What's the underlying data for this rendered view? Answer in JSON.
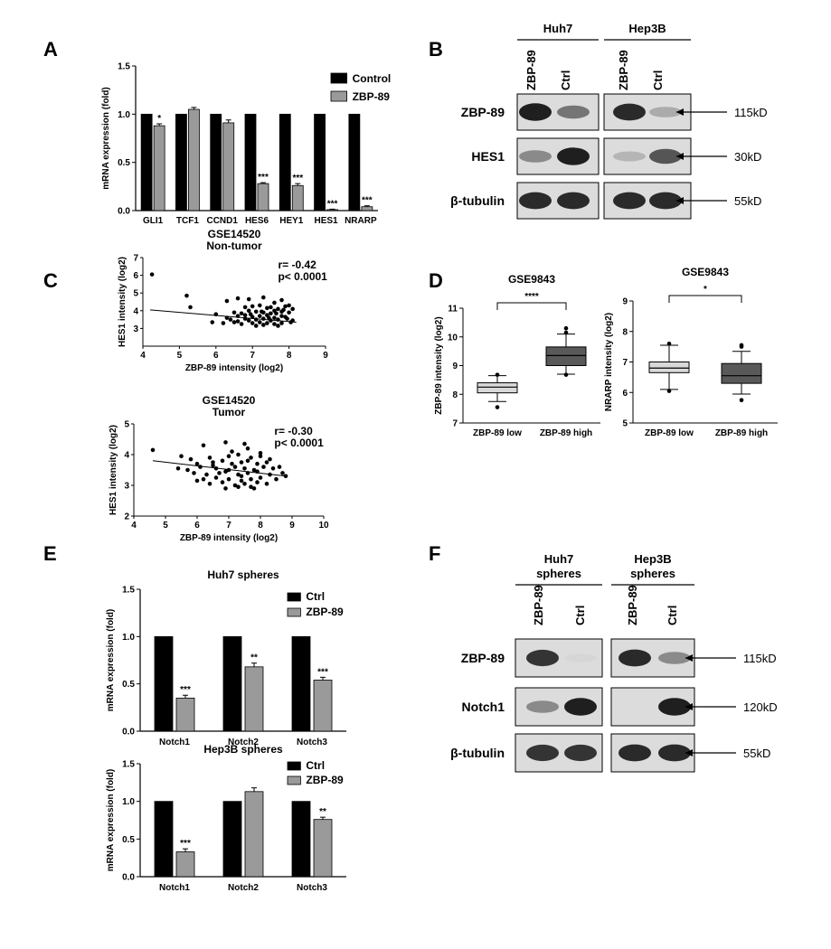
{
  "panels": {
    "A": {
      "letter": "A",
      "chart_data": {
        "type": "bar",
        "categories": [
          "GLI1",
          "TCF1",
          "CCND1",
          "HES6",
          "HEY1",
          "HES1",
          "NRARP"
        ],
        "series": [
          {
            "name": "Control",
            "values": [
              1.0,
              1.0,
              1.0,
              1.0,
              1.0,
              1.0,
              1.0
            ],
            "errors": [
              0,
              0,
              0,
              0,
              0,
              0,
              0
            ],
            "color": "#000000"
          },
          {
            "name": "ZBP-89",
            "values": [
              0.88,
              1.05,
              0.91,
              0.28,
              0.26,
              0.01,
              0.04
            ],
            "errors": [
              0.02,
              0.02,
              0.03,
              0.01,
              0.02,
              0.005,
              0.01
            ],
            "color": "#9a9a9a"
          }
        ],
        "significance": [
          "*",
          "",
          "",
          "***",
          "***",
          "***",
          "***"
        ],
        "ylabel": "mRNA expression (fold)",
        "yticks": [
          "0.0",
          "0.5",
          "1.0",
          "1.5"
        ],
        "ylim": [
          0,
          1.5
        ],
        "legend": "top-right"
      }
    },
    "B": {
      "letter": "B",
      "groups": [
        "Huh7",
        "Hep3B"
      ],
      "lanes": [
        "ZBP-89",
        "Ctrl",
        "ZBP-89",
        "Ctrl"
      ],
      "rows": [
        {
          "label": "ZBP-89",
          "size": "115kD",
          "bands": [
            0.95,
            0.55,
            0.9,
            0.3
          ]
        },
        {
          "label": "HES1",
          "size": "30kD",
          "bands": [
            0.45,
            0.95,
            0.25,
            0.7
          ]
        },
        {
          "label": "β-tubulin",
          "size": "55kD",
          "bands": [
            0.9,
            0.9,
            0.9,
            0.9
          ]
        }
      ]
    },
    "C": {
      "letter": "C",
      "charts": [
        {
          "chart_data": {
            "type": "scatter",
            "title": "GSE14520",
            "subtitle": "Non-tumor",
            "xlabel": "ZBP-89 intensity (log2)",
            "ylabel": "HES1 intensity (log2)",
            "xlim": [
              4,
              9
            ],
            "ylim": [
              2,
              7
            ],
            "xticks": [
              "4",
              "5",
              "6",
              "7",
              "8",
              "9"
            ],
            "yticks": [
              "3",
              "4",
              "5",
              "6",
              "7"
            ],
            "stats": [
              "r= -0.42",
              "p< 0.0001"
            ],
            "fit": {
              "x": [
                4.2,
                8.2
              ],
              "y": [
                4.05,
                3.35
              ]
            },
            "points": {
              "x": [
                4.25,
                5.2,
                5.3,
                6.3,
                6.6,
                6.9,
                7.3,
                7.6,
                7.8,
                6.8,
                7.0,
                7.2,
                7.4,
                7.5,
                7.7,
                7.9,
                8.0,
                8.1,
                6.5,
                6.7,
                6.9,
                7.1,
                7.3,
                7.5,
                7.6,
                7.8,
                8.0,
                6.6,
                6.8,
                7.0,
                7.2,
                7.4,
                7.6,
                7.8,
                7.9,
                6.4,
                6.9,
                7.1,
                7.3,
                7.5,
                7.7,
                7.95,
                6.2,
                6.5,
                6.7,
                7.0,
                7.2,
                7.4,
                7.6,
                7.8,
                8.05,
                6.0,
                6.3,
                6.6,
                7.1,
                7.3,
                7.7,
                8.1,
                5.9,
                6.8,
                7.45,
                7.65,
                7.25,
                6.95,
                7.85
              ],
              "y": [
                6.05,
                4.85,
                4.2,
                4.55,
                4.7,
                4.65,
                4.75,
                4.45,
                4.6,
                4.2,
                4.25,
                4.3,
                4.15,
                4.2,
                4.1,
                4.25,
                4.3,
                4.1,
                3.9,
                3.85,
                4.0,
                3.95,
                3.9,
                3.85,
                4.0,
                3.95,
                3.9,
                3.7,
                3.75,
                3.65,
                3.7,
                3.75,
                3.6,
                3.7,
                3.65,
                3.5,
                3.45,
                3.5,
                3.55,
                3.45,
                3.5,
                3.55,
                3.3,
                3.35,
                3.25,
                3.3,
                3.35,
                3.3,
                3.25,
                3.3,
                3.35,
                3.8,
                3.6,
                3.4,
                3.15,
                3.2,
                3.15,
                3.45,
                3.35,
                3.55,
                3.6,
                3.85,
                3.95,
                3.8,
                4.05
              ]
            }
          }
        },
        {
          "chart_data": {
            "type": "scatter",
            "title": "GSE14520",
            "subtitle": "Tumor",
            "xlabel": "ZBP-89 intensity (log2)",
            "ylabel": "HES1 intensity (log2)",
            "xlim": [
              4,
              10
            ],
            "ylim": [
              2,
              5
            ],
            "xticks": [
              "4",
              "5",
              "6",
              "7",
              "8",
              "9",
              "10"
            ],
            "yticks": [
              "2",
              "3",
              "4",
              "5"
            ],
            "stats": [
              "r= -0.30",
              "p< 0.0001"
            ],
            "fit": {
              "x": [
                4.6,
                8.8
              ],
              "y": [
                3.8,
                3.3
              ]
            },
            "points": {
              "x": [
                4.6,
                5.5,
                6.2,
                6.9,
                7.5,
                5.8,
                6.4,
                7.0,
                7.3,
                7.7,
                8.0,
                8.3,
                6.0,
                6.5,
                6.8,
                7.1,
                7.4,
                7.6,
                7.9,
                8.2,
                8.6,
                5.4,
                6.1,
                6.6,
                7.0,
                7.2,
                7.5,
                7.8,
                8.1,
                8.4,
                5.9,
                6.3,
                6.7,
                6.9,
                7.3,
                7.6,
                7.9,
                8.3,
                8.8,
                6.2,
                6.6,
                7.0,
                7.4,
                7.7,
                8.0,
                8.5,
                6.4,
                6.8,
                7.2,
                7.5,
                7.9,
                8.2,
                6.9,
                7.3,
                7.7,
                7.1,
                7.6,
                8.0,
                6.5,
                7.4,
                5.7,
                8.7,
                6.0,
                7.8
              ],
              "y": [
                4.15,
                3.95,
                4.3,
                4.4,
                4.35,
                3.85,
                3.9,
                3.95,
                4.0,
                3.9,
                3.95,
                3.85,
                3.7,
                3.75,
                3.8,
                3.7,
                3.75,
                3.8,
                3.7,
                3.75,
                3.6,
                3.55,
                3.6,
                3.55,
                3.5,
                3.6,
                3.55,
                3.5,
                3.6,
                3.55,
                3.4,
                3.35,
                3.4,
                3.45,
                3.35,
                3.4,
                3.45,
                3.35,
                3.3,
                3.2,
                3.25,
                3.2,
                3.15,
                3.2,
                3.25,
                3.2,
                3.05,
                3.1,
                3.0,
                3.05,
                3.1,
                3.05,
                2.9,
                2.95,
                2.95,
                4.1,
                4.2,
                4.05,
                3.65,
                3.3,
                3.5,
                3.4,
                3.15,
                2.9
              ]
            }
          }
        }
      ]
    },
    "D": {
      "letter": "D",
      "charts": [
        {
          "chart_data": {
            "type": "box",
            "title": "GSE9843",
            "categories": [
              "ZBP-89 low",
              "ZBP-89 high"
            ],
            "ylabel": "ZBP-89 intensity (log2)",
            "ylim": [
              7,
              11
            ],
            "yticks": [
              "7",
              "8",
              "9",
              "10",
              "11"
            ],
            "boxes": [
              {
                "whisker_low": 7.75,
                "q1": 8.05,
                "median": 8.25,
                "q3": 8.4,
                "whisker_high": 8.65,
                "outliers": [
                  7.55,
                  8.68
                ],
                "color": "#d9d9d9"
              },
              {
                "whisker_low": 8.7,
                "q1": 9.0,
                "median": 9.35,
                "q3": 9.65,
                "whisker_high": 10.1,
                "outliers": [
                  8.68,
                  10.15,
                  10.3
                ],
                "color": "#595959"
              }
            ],
            "significance": "****"
          }
        },
        {
          "chart_data": {
            "type": "box",
            "title": "GSE9843",
            "categories": [
              "ZBP-89 low",
              "ZBP-89 high"
            ],
            "ylabel": "NRARP intensity (log2)",
            "ylim": [
              5,
              9
            ],
            "yticks": [
              "5",
              "6",
              "7",
              "8",
              "9"
            ],
            "boxes": [
              {
                "whisker_low": 6.1,
                "q1": 6.65,
                "median": 6.8,
                "q3": 7.0,
                "whisker_high": 7.55,
                "outliers": [
                  6.05,
                  7.6
                ],
                "color": "#d9d9d9"
              },
              {
                "whisker_low": 5.95,
                "q1": 6.3,
                "median": 6.55,
                "q3": 6.95,
                "whisker_high": 7.35,
                "outliers": [
                  5.75,
                  7.5,
                  7.55
                ],
                "color": "#595959"
              }
            ],
            "significance": "*"
          }
        }
      ]
    },
    "E": {
      "letter": "E",
      "charts": [
        {
          "chart_data": {
            "type": "bar",
            "title": "Huh7 spheres",
            "categories": [
              "Notch1",
              "Notch2",
              "Notch3"
            ],
            "series": [
              {
                "name": "Ctrl",
                "values": [
                  1.0,
                  1.0,
                  1.0
                ],
                "errors": [
                  0,
                  0,
                  0
                ],
                "color": "#000000"
              },
              {
                "name": "ZBP-89",
                "values": [
                  0.35,
                  0.68,
                  0.54
                ],
                "errors": [
                  0.03,
                  0.04,
                  0.03
                ],
                "color": "#9a9a9a"
              }
            ],
            "significance": [
              "***",
              "**",
              "***"
            ],
            "ylabel": "mRNA expression (fold)",
            "ylim": [
              0,
              1.5
            ],
            "yticks": [
              "0.0",
              "0.5",
              "1.0",
              "1.5"
            ],
            "legend": "top-right"
          }
        },
        {
          "chart_data": {
            "type": "bar",
            "title": "Hep3B spheres",
            "categories": [
              "Notch1",
              "Notch2",
              "Notch3"
            ],
            "series": [
              {
                "name": "Ctrl",
                "values": [
                  1.0,
                  1.0,
                  1.0
                ],
                "errors": [
                  0,
                  0,
                  0
                ],
                "color": "#000000"
              },
              {
                "name": "ZBP-89",
                "values": [
                  0.33,
                  1.13,
                  0.76
                ],
                "errors": [
                  0.04,
                  0.05,
                  0.03
                ],
                "color": "#9a9a9a"
              }
            ],
            "significance": [
              "***",
              "",
              "**"
            ],
            "ylabel": "mRNA expression (fold)",
            "ylim": [
              0,
              1.5
            ],
            "yticks": [
              "0.0",
              "0.5",
              "1.0",
              "1.5"
            ],
            "legend": "top-right"
          }
        }
      ]
    },
    "F": {
      "letter": "F",
      "groups": [
        [
          "Huh7",
          "spheres"
        ],
        [
          "Hep3B",
          "spheres"
        ]
      ],
      "lanes": [
        "ZBP-89",
        "Ctrl",
        "ZBP-89",
        "Ctrl"
      ],
      "rows": [
        {
          "label": "ZBP-89",
          "size": "115kD",
          "bands": [
            0.85,
            0.1,
            0.9,
            0.45
          ]
        },
        {
          "label": "Notch1",
          "size": "120kD",
          "bands": [
            0.45,
            0.95,
            0.0,
            0.95
          ]
        },
        {
          "label": "β-tubulin",
          "size": "55kD",
          "bands": [
            0.85,
            0.85,
            0.9,
            0.9
          ]
        }
      ]
    }
  }
}
